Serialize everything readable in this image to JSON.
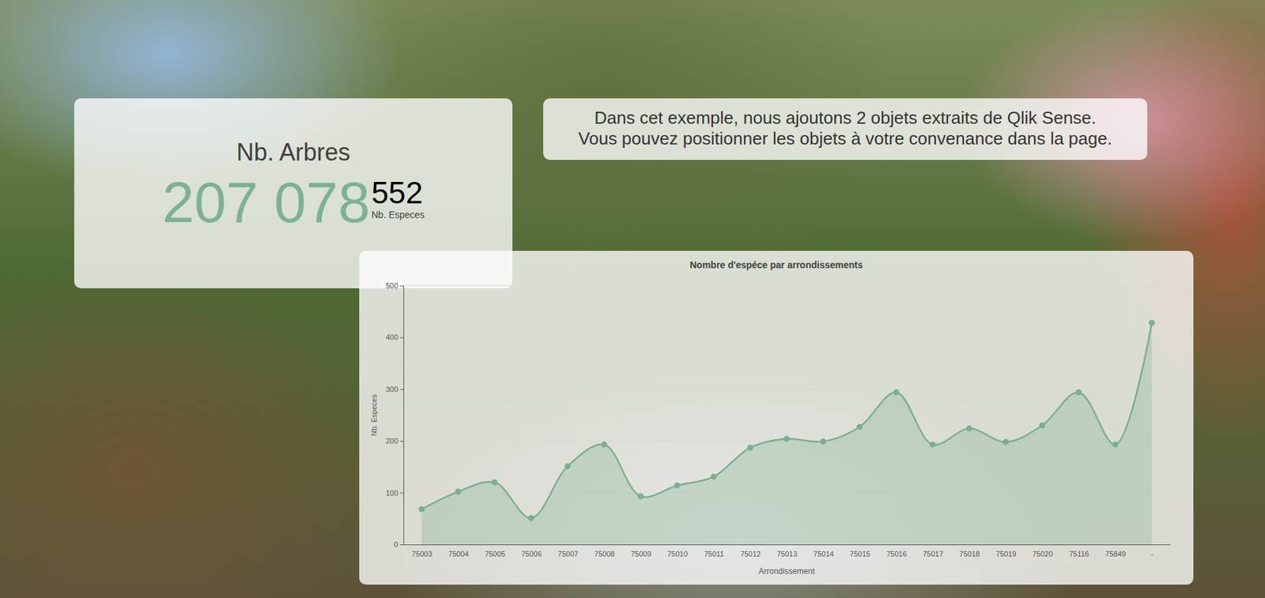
{
  "kpi": {
    "title": "Nb. Arbres",
    "main_value": "207 078",
    "secondary_value": 552,
    "secondary_label": "Nb. Especes"
  },
  "note": {
    "lines": [
      "Dans cet exemple, nous ajoutons 2 objets extraits de Qlik Sense.",
      "Vous pouvez positionner les objets à votre convenance dans la page."
    ]
  },
  "chart_data": {
    "type": "line",
    "title": "Nombre d'espéce par arrondissements",
    "x_label": "Arrondissement",
    "y_label": "Nb. Especes",
    "categories": [
      "75003",
      "75004",
      "75005",
      "75006",
      "75007",
      "75008",
      "75009",
      "75010",
      "75011",
      "75012",
      "75013",
      "75014",
      "75015",
      "75016",
      "75017",
      "75018",
      "75019",
      "75020",
      "75116",
      "75849",
      "-"
    ],
    "values": [
      68,
      102,
      120,
      51,
      151,
      193,
      93,
      114,
      131,
      187,
      204,
      199,
      227,
      294,
      193,
      224,
      198,
      230,
      294,
      193,
      428
    ],
    "color": "#7aaf8f",
    "marker": "circle",
    "ylim": [
      0,
      500
    ],
    "yticks": [
      0,
      100,
      200,
      300,
      400,
      500
    ],
    "grid": true
  }
}
